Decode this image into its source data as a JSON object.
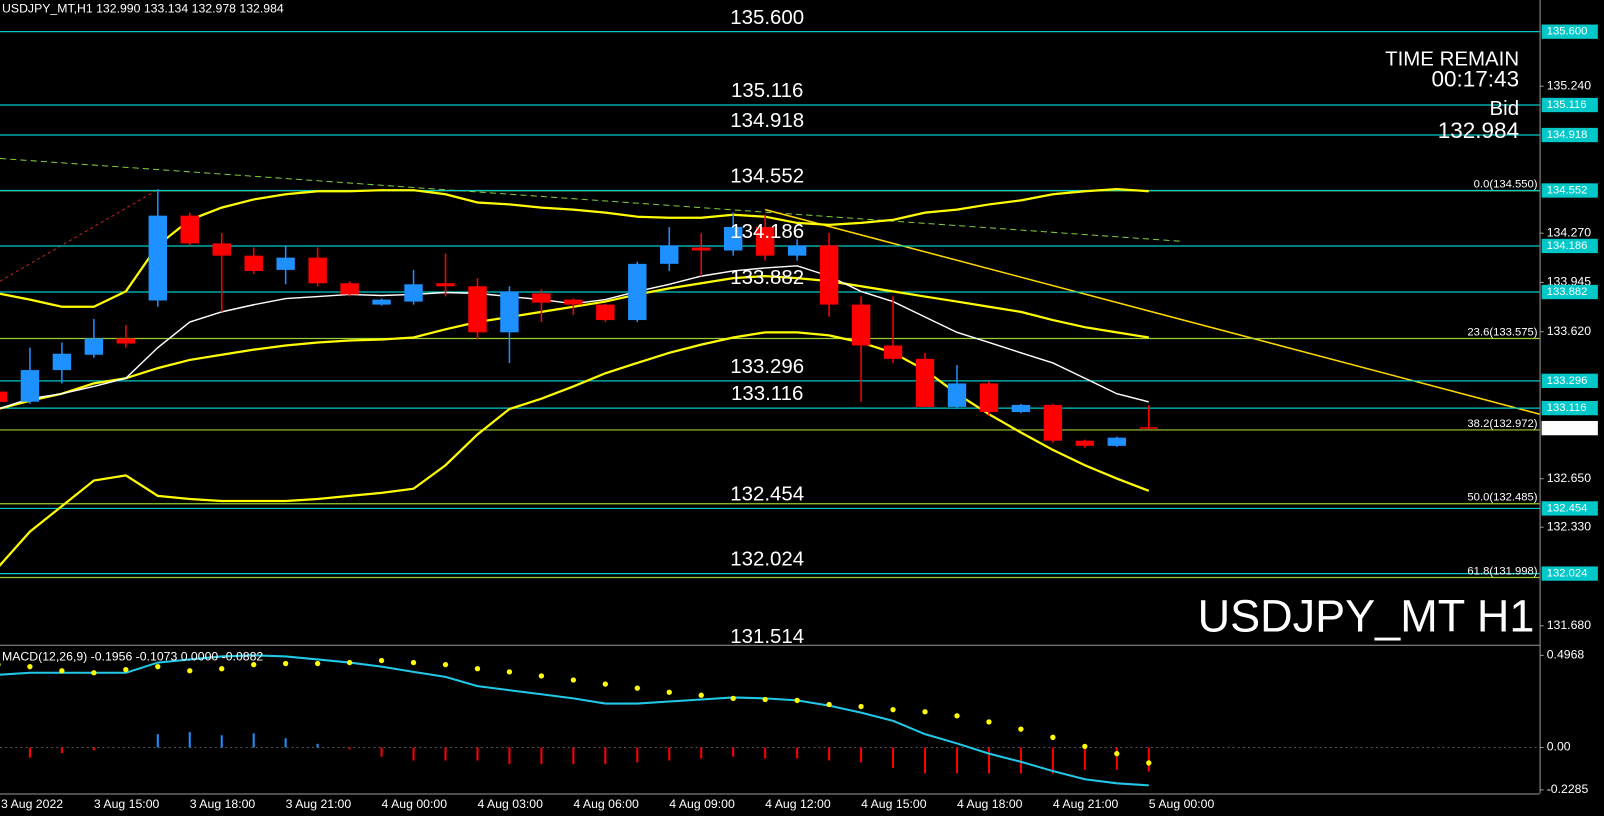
{
  "chart_data": [
    {
      "type": "candlestick",
      "header": "USDJPY_MT,H1  132.990 133.134 132.978 132.984",
      "watermark": "USDJPY_MT H1",
      "time_remain_label": "TIME REMAIN",
      "time_remain": "00:17:43",
      "bid_label": "Bid",
      "bid": 132.984,
      "categories": [
        "3 Aug 2022",
        null,
        null,
        "3 Aug 15:00",
        null,
        null,
        "3 Aug 18:00",
        null,
        null,
        "3 Aug 21:00",
        null,
        null,
        "4 Aug 00:00",
        null,
        null,
        "4 Aug 03:00",
        null,
        null,
        "4 Aug 06:00",
        null,
        null,
        "4 Aug 09:00",
        null,
        null,
        "4 Aug 12:00",
        null,
        null,
        "4 Aug 15:00",
        null,
        null,
        "4 Aug 18:00",
        null,
        null,
        "4 Aug 21:00",
        null,
        null,
        "5 Aug 00:00"
      ],
      "open": [
        133.225,
        133.158,
        133.367,
        133.468,
        133.576,
        133.826,
        134.386,
        134.203,
        134.122,
        134.028,
        134.109,
        133.94,
        133.799,
        133.819,
        133.94,
        133.92,
        133.616,
        133.873,
        133.832,
        133.799,
        133.697,
        134.068,
        134.176,
        134.156,
        134.311,
        134.122,
        134.19,
        133.799,
        133.529,
        133.441,
        133.124,
        133.279,
        133.09,
        133.137,
        132.901,
        132.867,
        132.99
      ],
      "high": [
        133.24,
        133.515,
        133.549,
        133.704,
        133.664,
        134.561,
        134.406,
        134.271,
        134.176,
        134.19,
        134.176,
        133.954,
        133.839,
        134.028,
        134.136,
        133.974,
        133.92,
        133.9,
        133.839,
        133.805,
        134.082,
        134.311,
        134.271,
        134.406,
        134.392,
        134.23,
        134.271,
        133.853,
        133.853,
        133.481,
        133.4,
        133.293,
        133.144,
        133.144,
        132.908,
        132.928,
        133.134
      ],
      "low": [
        133.15,
        133.144,
        133.279,
        133.448,
        133.515,
        133.785,
        134.19,
        133.751,
        134.001,
        133.933,
        133.92,
        133.853,
        133.792,
        133.799,
        133.853,
        133.569,
        133.414,
        133.684,
        133.731,
        133.684,
        133.684,
        134.021,
        133.987,
        134.122,
        134.089,
        134.089,
        133.718,
        133.158,
        133.414,
        133.124,
        133.11,
        133.063,
        133.083,
        132.888,
        132.854,
        132.86,
        132.978
      ],
      "close": [
        133.157,
        133.367,
        133.475,
        133.576,
        133.542,
        134.386,
        134.203,
        134.122,
        134.021,
        134.109,
        133.94,
        133.866,
        133.832,
        133.933,
        133.92,
        133.616,
        133.886,
        133.812,
        133.799,
        133.697,
        134.068,
        134.19,
        134.156,
        134.311,
        134.122,
        134.19,
        133.799,
        133.529,
        133.441,
        133.124,
        133.279,
        133.09,
        133.137,
        132.901,
        132.867,
        132.921,
        132.984
      ],
      "up_color": "#1e90ff",
      "down_color": "#ff0000",
      "overlays": [
        {
          "color": "#ffff00",
          "values": [
            133.873,
            133.832,
            133.785,
            133.785,
            133.886,
            134.19,
            134.358,
            134.439,
            134.493,
            134.527,
            134.547,
            134.547,
            134.554,
            134.554,
            134.527,
            134.473,
            134.46,
            134.439,
            134.426,
            134.406,
            134.379,
            134.372,
            134.372,
            134.392,
            134.379,
            134.338,
            134.325,
            134.338,
            134.358,
            134.406,
            134.426,
            134.46,
            134.487,
            134.527,
            134.547,
            134.561,
            134.547
          ]
        },
        {
          "color": "#ffff00",
          "values": [
            133.11,
            133.164,
            133.211,
            133.279,
            133.313,
            133.38,
            133.434,
            133.468,
            133.502,
            133.529,
            133.549,
            133.562,
            133.569,
            133.582,
            133.636,
            133.684,
            133.717,
            133.751,
            133.785,
            133.819,
            133.866,
            133.906,
            133.94,
            133.974,
            133.987,
            133.974,
            133.954,
            133.92,
            133.886,
            133.852,
            133.819,
            133.785,
            133.751,
            133.697,
            133.65,
            133.616,
            133.582
          ]
        },
        {
          "color": "#ffff00",
          "values": [
            132.064,
            132.301,
            132.469,
            132.638,
            132.672,
            132.537,
            132.516,
            132.503,
            132.503,
            132.503,
            132.516,
            132.537,
            132.557,
            132.584,
            132.739,
            132.942,
            133.11,
            133.178,
            133.259,
            133.346,
            133.414,
            133.481,
            133.535,
            133.582,
            133.616,
            133.616,
            133.596,
            133.549,
            133.481,
            133.367,
            133.211,
            133.076,
            132.955,
            132.84,
            132.739,
            132.651,
            132.57
          ]
        },
        {
          "color": "#ffffff",
          "values": [
            133.11,
            133.178,
            133.211,
            133.259,
            133.313,
            133.515,
            133.684,
            133.751,
            133.798,
            133.839,
            133.852,
            133.866,
            133.859,
            133.866,
            133.879,
            133.873,
            133.852,
            133.832,
            133.805,
            133.832,
            133.886,
            133.933,
            133.987,
            134.021,
            134.041,
            134.055,
            133.987,
            133.886,
            133.819,
            133.717,
            133.616,
            133.549,
            133.481,
            133.414,
            133.313,
            133.211,
            133.157
          ]
        }
      ],
      "levels": [
        {
          "value": 135.6,
          "label": "135.600"
        },
        135.116,
        134.918,
        134.552,
        134.186,
        133.882,
        133.296,
        133.116,
        132.454,
        132.024,
        131.514
      ],
      "level_color": "#00c8c8",
      "fib_levels": [
        {
          "value": 134.55,
          "label": "0.0(134.550)"
        },
        {
          "value": 133.575,
          "label": "23.6(133.575)"
        },
        {
          "value": 132.972,
          "label": "38.2(132.972)"
        },
        {
          "value": 132.485,
          "label": "50.0(132.485)"
        },
        {
          "value": 131.998,
          "label": "61.8(131.998)"
        }
      ],
      "fib_color": "#9acd32",
      "ylim": [
        131.558,
        135.809
      ],
      "yticks": [
        {
          "value": 135.24,
          "label": "135.240"
        },
        {
          "value": 134.27,
          "label": "134.270"
        },
        133.945,
        {
          "value": 133.62,
          "label": "133.620"
        },
        {
          "value": 132.65,
          "label": "132.650"
        },
        {
          "value": 132.33,
          "label": "132.330"
        },
        {
          "value": 131.68,
          "label": "131.680"
        }
      ]
    },
    {
      "type": "macd",
      "title": "MACD(12,26,9) -0.1956 -0.1073 0.0000 -0.0882",
      "histogram": [
        -0.02,
        -0.055,
        -0.03,
        -0.015,
        0,
        0.072,
        0.083,
        0.066,
        0.077,
        0.05,
        0.02,
        -0.01,
        -0.05,
        -0.07,
        -0.07,
        -0.07,
        -0.09,
        -0.09,
        -0.09,
        -0.09,
        -0.08,
        -0.07,
        -0.06,
        -0.05,
        -0.06,
        -0.06,
        -0.07,
        -0.08,
        -0.11,
        -0.14,
        -0.14,
        -0.14,
        -0.14,
        -0.14,
        -0.12,
        -0.12,
        -0.13
      ],
      "macd": [
        0.392,
        0.403,
        0.403,
        0.403,
        0.403,
        0.458,
        0.475,
        0.491,
        0.497,
        0.491,
        0.475,
        0.458,
        0.436,
        0.408,
        0.381,
        0.331,
        0.309,
        0.287,
        0.265,
        0.237,
        0.237,
        0.248,
        0.259,
        0.27,
        0.265,
        0.254,
        0.226,
        0.188,
        0.144,
        0.072,
        0.022,
        -0.033,
        -0.077,
        -0.127,
        -0.171,
        -0.193,
        -0.204
      ],
      "signal": [
        0.447,
        0.436,
        0.414,
        0.403,
        0.42,
        0.436,
        0.414,
        0.425,
        0.447,
        0.453,
        0.453,
        0.458,
        0.469,
        0.458,
        0.447,
        0.425,
        0.408,
        0.386,
        0.364,
        0.342,
        0.32,
        0.298,
        0.282,
        0.265,
        0.259,
        0.254,
        0.232,
        0.221,
        0.204,
        0.193,
        0.171,
        0.138,
        0.099,
        0.055,
        0.006,
        -0.033,
        -0.083
      ],
      "up_color": "#1e90ff",
      "down_color": "#ff0000",
      "macd_color": "#22c8e8",
      "signal_color": "#ffff00",
      "ylim": [
        -0.248,
        0.546
      ],
      "yticks": [
        0.4968,
        {
          "value": 0,
          "label": "0.00"
        },
        -0.2285
      ]
    }
  ]
}
